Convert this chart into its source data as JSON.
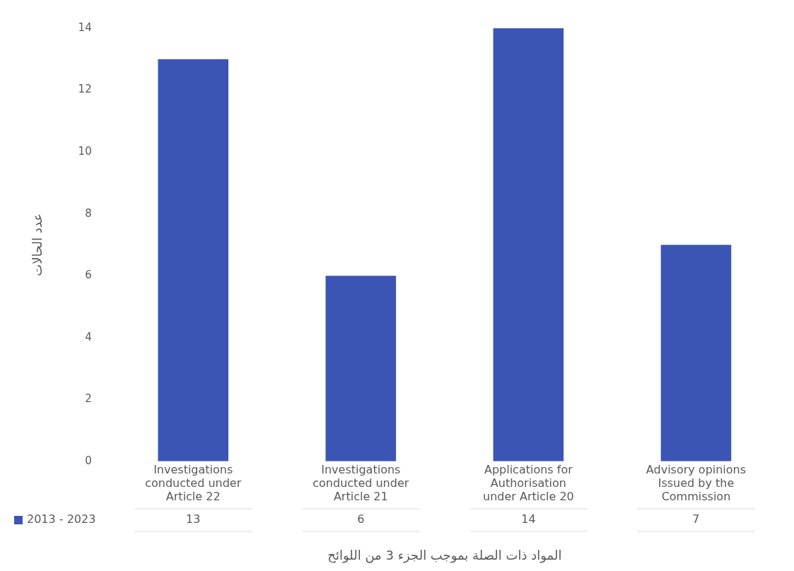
{
  "chart_data": {
    "type": "bar",
    "xlabel": "المواد ذات الصلة بموجب الجزء 3 من اللوائح",
    "ylabel": "عدد الحالات",
    "categories": [
      "Investigations conducted under Article 22",
      "Investigations conducted under Article 21",
      "Applications for Authorisation under Article 20",
      "Advisory opinions Issued by the Commission"
    ],
    "series": [
      {
        "name": "2013 - 2023",
        "color": "#3b55b5",
        "values": [
          13,
          6,
          14,
          7
        ]
      }
    ],
    "ylim": [
      0,
      14
    ],
    "yticks": [
      0,
      2,
      4,
      6,
      8,
      10,
      12,
      14
    ],
    "grid": false,
    "legend": "bottom",
    "data_labels": true
  }
}
